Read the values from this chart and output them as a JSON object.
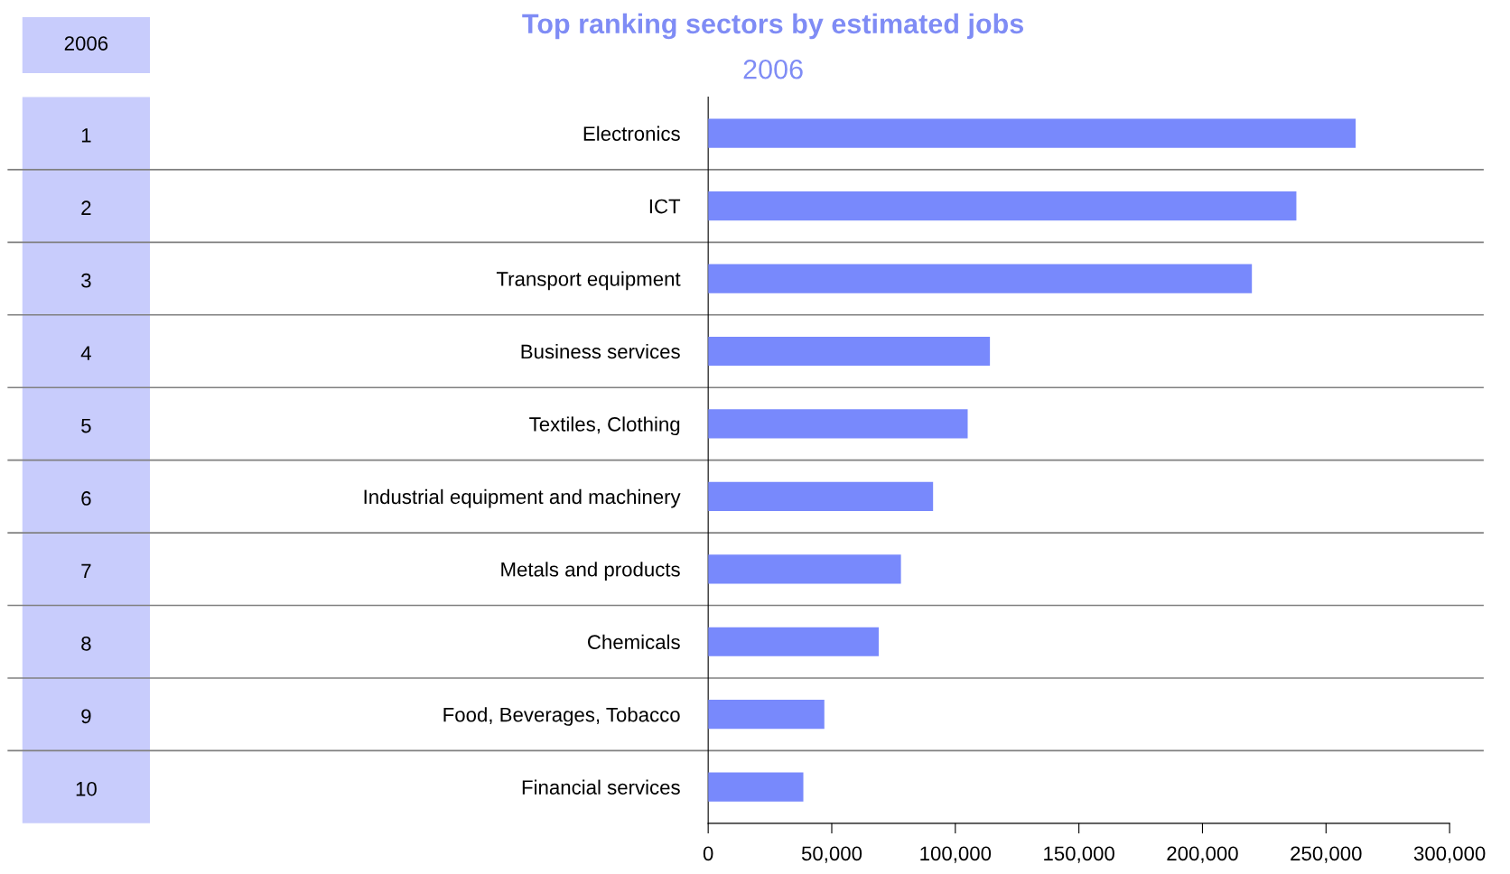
{
  "chart_data": {
    "type": "bar",
    "orientation": "horizontal",
    "title": "Top ranking sectors by estimated jobs",
    "subtitle": "2006",
    "categories": [
      "Electronics",
      "ICT",
      "Transport equipment",
      "Business services",
      "Textiles, Clothing",
      "Industrial equipment and machinery",
      "Metals and products",
      "Chemicals",
      "Food, Beverages, Tobacco",
      "Financial services"
    ],
    "values": [
      262000,
      238000,
      220000,
      114000,
      105000,
      91000,
      78000,
      69000,
      47000,
      38500
    ],
    "color": "#7889fc",
    "xlim": [
      0,
      300000
    ],
    "xticks": [
      0,
      {
        "value": 50000,
        "label": "50,000"
      },
      {
        "value": 100000,
        "label": "100,000"
      },
      {
        "value": 150000,
        "label": "150,000"
      },
      {
        "value": 200000,
        "label": "200,000"
      },
      {
        "value": 250000,
        "label": "250,000"
      },
      {
        "value": 300000,
        "label": "300,000"
      }
    ],
    "annotations": [
      "2006",
      "1",
      "2",
      "3",
      "4",
      "5",
      "6",
      "7",
      "8",
      "9",
      "10"
    ],
    "grid": false,
    "legend": false
  }
}
